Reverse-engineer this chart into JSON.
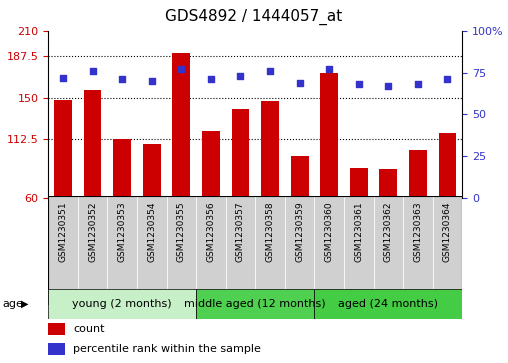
{
  "title": "GDS4892 / 1444057_at",
  "samples": [
    "GSM1230351",
    "GSM1230352",
    "GSM1230353",
    "GSM1230354",
    "GSM1230355",
    "GSM1230356",
    "GSM1230357",
    "GSM1230358",
    "GSM1230359",
    "GSM1230360",
    "GSM1230361",
    "GSM1230362",
    "GSM1230363",
    "GSM1230364"
  ],
  "counts": [
    148,
    157,
    113,
    108,
    190,
    120,
    140,
    147,
    98,
    172,
    87,
    86,
    103,
    118
  ],
  "percentiles": [
    72,
    76,
    71,
    70,
    77,
    71,
    73,
    76,
    69,
    77,
    68,
    67,
    68,
    71
  ],
  "ylim_left": [
    60,
    210
  ],
  "ylim_right": [
    0,
    100
  ],
  "yticks_left": [
    60,
    112.5,
    150,
    187.5,
    210
  ],
  "yticks_right": [
    0,
    25,
    50,
    75,
    100
  ],
  "ytick_labels_left": [
    "60",
    "112.5",
    "150",
    "187.5",
    "210"
  ],
  "ytick_labels_right": [
    "0",
    "25",
    "50",
    "75",
    "100%"
  ],
  "hlines": [
    112.5,
    150,
    187.5
  ],
  "bar_color": "#cc0000",
  "dot_color": "#3333cc",
  "groups": [
    {
      "label": "young (2 months)",
      "start": 0,
      "end": 5,
      "color": "#c8f0c8"
    },
    {
      "label": "middle aged (12 months)",
      "start": 5,
      "end": 9,
      "color": "#50d050"
    },
    {
      "label": "aged (24 months)",
      "start": 9,
      "end": 14,
      "color": "#44cc44"
    }
  ],
  "age_label": "age",
  "legend_count_label": "count",
  "legend_percentile_label": "percentile rank within the sample",
  "title_fontsize": 11,
  "tick_fontsize": 8,
  "sample_fontsize": 6.5,
  "group_label_fontsize": 8,
  "legend_fontsize": 8,
  "bg_color": "#d8d8d8",
  "plot_bg": "#ffffff",
  "sample_bg": "#d0d0d0"
}
